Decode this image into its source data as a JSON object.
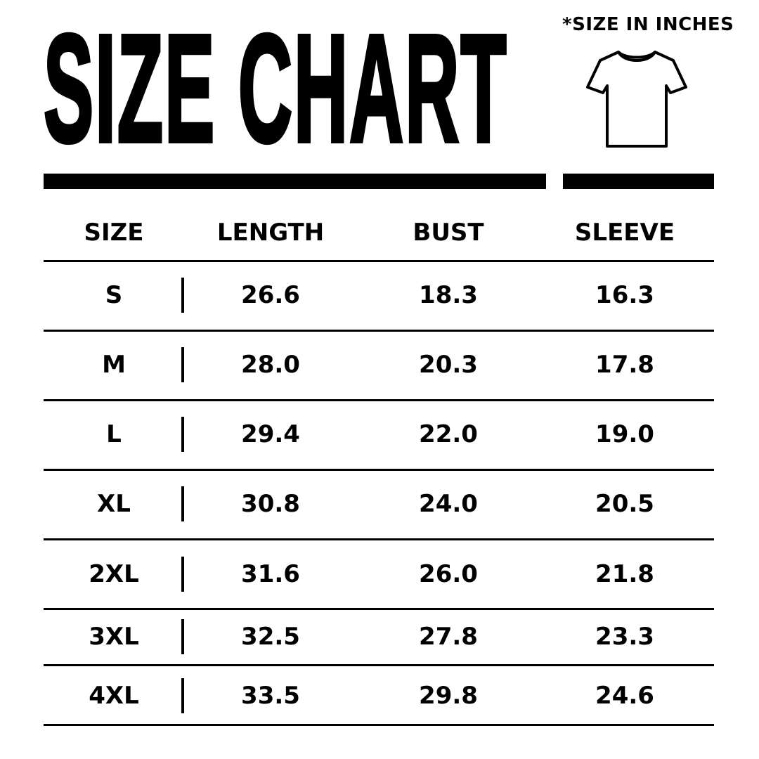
{
  "title": "SIZE CHART",
  "note": "*SIZE IN INCHES",
  "icon": "t-shirt-icon",
  "table": {
    "headers": [
      "SIZE",
      "LENGTH",
      "BUST",
      "SLEEVE"
    ],
    "rows": [
      [
        "S",
        "26.6",
        "18.3",
        "16.3"
      ],
      [
        "M",
        "28.0",
        "20.3",
        "17.8"
      ],
      [
        "L",
        "29.4",
        "22.0",
        "19.0"
      ],
      [
        "XL",
        "30.8",
        "24.0",
        "20.5"
      ],
      [
        "2XL",
        "31.6",
        "26.0",
        "21.8"
      ],
      [
        "3XL",
        "32.5",
        "27.8",
        "23.3"
      ],
      [
        "4XL",
        "33.5",
        "29.8",
        "24.6"
      ]
    ]
  }
}
